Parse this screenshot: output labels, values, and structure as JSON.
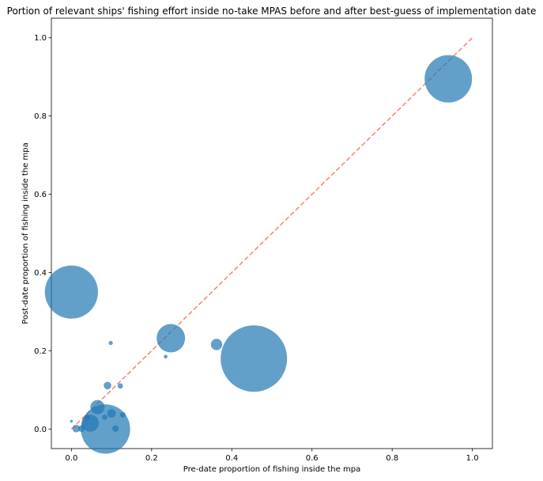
{
  "chart_data": {
    "type": "scatter",
    "title": "Portion of relevant ships' fishing effort inside no-take MPAS before and after best-guess of implementation date",
    "xlabel": "Pre-date proportion of fishing inside the mpa",
    "ylabel": "Post-date proportion of fishing inside the mpa",
    "xlim": [
      -0.05,
      1.05
    ],
    "ylim": [
      -0.05,
      1.05
    ],
    "xticks": [
      0.0,
      0.2,
      0.4,
      0.6,
      0.8,
      1.0
    ],
    "yticks": [
      0.0,
      0.2,
      0.4,
      0.6,
      0.8,
      1.0
    ],
    "xtick_labels": [
      "0.0",
      "0.2",
      "0.4",
      "0.6",
      "0.8",
      "1.0"
    ],
    "ytick_labels": [
      "0.0",
      "0.2",
      "0.4",
      "0.6",
      "0.8",
      "1.0"
    ],
    "grid": false,
    "point_color": "#1f77b4",
    "point_alpha": 0.7,
    "reference_line": {
      "from": [
        0.0,
        0.0
      ],
      "to": [
        1.0,
        1.0
      ],
      "color": "#fa8072",
      "style": "dashed"
    },
    "points": [
      {
        "x": 0.0,
        "y": 0.35,
        "size": 2.8
      },
      {
        "x": 0.94,
        "y": 0.895,
        "size": 2.5
      },
      {
        "x": 0.455,
        "y": 0.18,
        "size": 3.5
      },
      {
        "x": 0.085,
        "y": 0.0,
        "size": 2.6
      },
      {
        "x": 0.248,
        "y": 0.232,
        "size": 1.5
      },
      {
        "x": 0.047,
        "y": 0.015,
        "size": 0.9
      },
      {
        "x": 0.065,
        "y": 0.056,
        "size": 0.75
      },
      {
        "x": 0.362,
        "y": 0.216,
        "size": 0.6
      },
      {
        "x": 0.1,
        "y": 0.04,
        "size": 0.45
      },
      {
        "x": 0.09,
        "y": 0.111,
        "size": 0.4
      },
      {
        "x": 0.012,
        "y": 0.001,
        "size": 0.4
      },
      {
        "x": 0.025,
        "y": 0.001,
        "size": 0.35
      },
      {
        "x": 0.04,
        "y": 0.03,
        "size": 0.3
      },
      {
        "x": 0.11,
        "y": 0.001,
        "size": 0.35
      },
      {
        "x": 0.128,
        "y": 0.036,
        "size": 0.3
      },
      {
        "x": 0.122,
        "y": 0.11,
        "size": 0.28
      },
      {
        "x": 0.083,
        "y": 0.03,
        "size": 0.28
      },
      {
        "x": 0.098,
        "y": 0.22,
        "size": 0.22
      },
      {
        "x": 0.235,
        "y": 0.185,
        "size": 0.2
      },
      {
        "x": 0.0,
        "y": 0.02,
        "size": 0.15
      }
    ]
  }
}
